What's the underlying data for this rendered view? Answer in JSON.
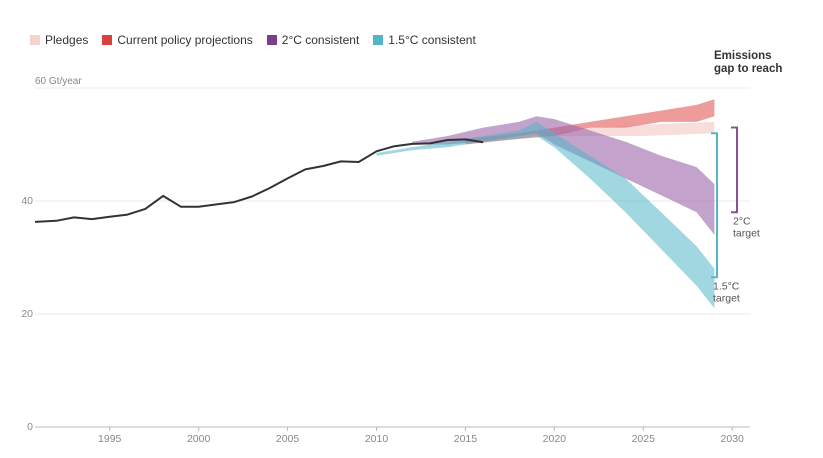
{
  "chart_data": {
    "type": "area",
    "legend": [
      {
        "name": "Pledges",
        "color": "#f6d3cf"
      },
      {
        "name": "Current policy projections",
        "color": "#d9403f"
      },
      {
        "name": "2°C consistent",
        "color": "#7b4089"
      },
      {
        "name": "1.5°C consistent",
        "color": "#52b6c8"
      }
    ],
    "ylabel": "60 Gt/year",
    "y_ticks": [
      "40",
      "20",
      "0"
    ],
    "x_ticks": [
      "1995",
      "2000",
      "2005",
      "2010",
      "2015",
      "2020",
      "2025",
      "2030"
    ],
    "xlim": [
      1990.8,
      2031
    ],
    "ylim": [
      0,
      60
    ],
    "gap_title": "Emissions gap to reach",
    "targets": [
      {
        "label_line1": "2°C",
        "label_line2": "target",
        "range": [
          38,
          53
        ]
      },
      {
        "label_line1": "1.5°C",
        "label_line2": "target",
        "range": [
          26.5,
          52
        ]
      }
    ],
    "historical": [
      [
        1990.8,
        36.3
      ],
      [
        1992,
        36.5
      ],
      [
        1993,
        37.1
      ],
      [
        1994,
        36.8
      ],
      [
        1995,
        37.2
      ],
      [
        1996,
        37.6
      ],
      [
        1997,
        38.6
      ],
      [
        1998,
        40.9
      ],
      [
        1999,
        39
      ],
      [
        2000,
        39
      ],
      [
        2001,
        39.4
      ],
      [
        2002,
        39.8
      ],
      [
        2003,
        40.8
      ],
      [
        2004,
        42.3
      ],
      [
        2005,
        44
      ],
      [
        2006,
        45.6
      ],
      [
        2007,
        46.2
      ],
      [
        2008,
        47
      ],
      [
        2009,
        46.9
      ],
      [
        2010,
        48.8
      ],
      [
        2011,
        49.7
      ],
      [
        2012,
        50.1
      ],
      [
        2013,
        50.2
      ],
      [
        2014,
        50.8
      ],
      [
        2015,
        50.9
      ],
      [
        2016,
        50.4
      ]
    ],
    "bands": [
      {
        "name": "Pledges",
        "x": [
          2018,
          2020,
          2022,
          2025,
          2029
        ],
        "low": [
          52,
          51.5,
          51.5,
          51.5,
          52
        ],
        "high": [
          52,
          52,
          53,
          53.5,
          54
        ]
      },
      {
        "name": "Current policy projections",
        "x": [
          2015,
          2018,
          2020,
          2022,
          2024,
          2026,
          2028,
          2029
        ],
        "low": [
          50,
          51,
          51.5,
          53,
          53,
          54,
          54,
          55
        ],
        "high": [
          51,
          52,
          53,
          54,
          55,
          56,
          57,
          58
        ]
      },
      {
        "name": "2°C consistent",
        "x": [
          2012,
          2014,
          2016,
          2018,
          2019,
          2020,
          2022,
          2024,
          2026,
          2028,
          2029
        ],
        "low": [
          50,
          50,
          50.5,
          51.5,
          52,
          50,
          47,
          44,
          41,
          38,
          34
        ],
        "high": [
          50.5,
          51.5,
          53,
          54,
          55,
          54.5,
          52.5,
          50.5,
          48,
          46,
          43
        ]
      },
      {
        "name": "1.5°C consistent",
        "x": [
          2010,
          2012,
          2014,
          2016,
          2018,
          2019,
          2020,
          2022,
          2024,
          2026,
          2028,
          2029
        ],
        "low": [
          48,
          49,
          49.5,
          50.5,
          51,
          51.5,
          49.5,
          44,
          38,
          31.5,
          25,
          21
        ],
        "high": [
          48.5,
          49.5,
          50.5,
          51.5,
          52.5,
          54,
          52,
          48,
          44,
          38,
          32,
          28
        ]
      }
    ]
  }
}
